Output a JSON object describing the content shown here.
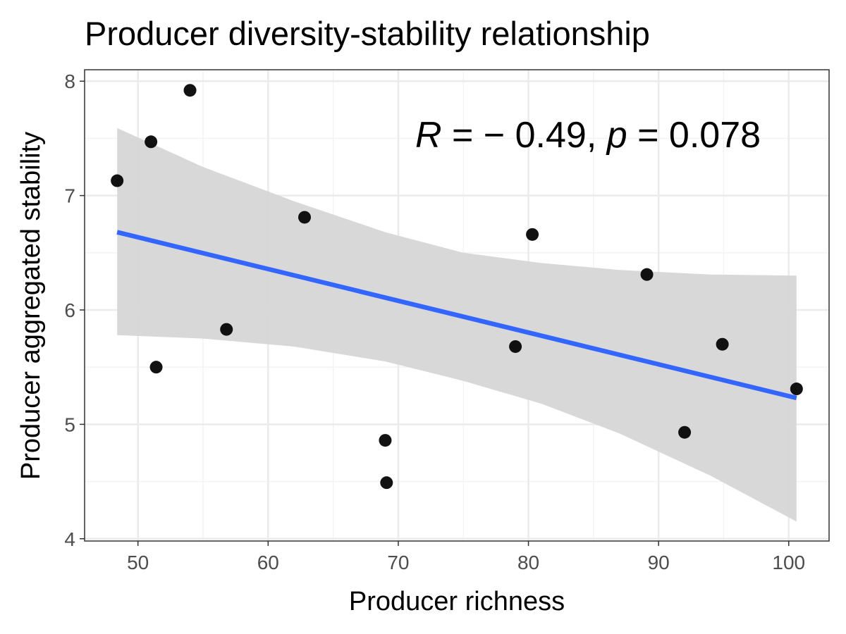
{
  "chart_data": {
    "type": "scatter",
    "title": "Producer diversity-stability relationship",
    "xlabel": "Producer richness",
    "ylabel": "Producer aggregated stability",
    "xlim": [
      45.9,
      103.1
    ],
    "ylim": [
      3.98,
      8.1
    ],
    "x_ticks": [
      50,
      60,
      70,
      80,
      90,
      100
    ],
    "y_ticks": [
      4,
      5,
      6,
      7,
      8
    ],
    "x_tick_labels": [
      "50",
      "60",
      "70",
      "80",
      "90",
      "100"
    ],
    "y_tick_labels": [
      "4",
      "5",
      "6",
      "7",
      "8"
    ],
    "grid": true,
    "points": [
      {
        "x": 48.4,
        "y": 7.13
      },
      {
        "x": 51.0,
        "y": 7.47
      },
      {
        "x": 51.4,
        "y": 5.5
      },
      {
        "x": 54.0,
        "y": 7.92
      },
      {
        "x": 56.8,
        "y": 5.83
      },
      {
        "x": 62.8,
        "y": 6.81
      },
      {
        "x": 69.0,
        "y": 4.86
      },
      {
        "x": 69.1,
        "y": 4.49
      },
      {
        "x": 79.0,
        "y": 5.68
      },
      {
        "x": 80.3,
        "y": 6.66
      },
      {
        "x": 89.1,
        "y": 6.31
      },
      {
        "x": 92.0,
        "y": 4.93
      },
      {
        "x": 94.9,
        "y": 5.7
      },
      {
        "x": 100.6,
        "y": 5.31
      }
    ],
    "regression": {
      "color": "#3366ff",
      "x": [
        48.4,
        100.6
      ],
      "y": [
        6.68,
        5.23
      ]
    },
    "confidence_band": {
      "color": "#d6d6d6",
      "x": [
        48.4,
        55,
        62,
        69,
        75,
        81,
        87,
        94,
        100.6
      ],
      "upper": [
        7.59,
        7.25,
        6.95,
        6.68,
        6.5,
        6.41,
        6.35,
        6.31,
        6.3
      ],
      "lower": [
        5.78,
        5.75,
        5.68,
        5.55,
        5.38,
        5.18,
        4.92,
        4.55,
        4.15
      ]
    },
    "annotation": {
      "r_symbol": "R",
      "r_text": " = − 0.49, ",
      "p_symbol": "p",
      "p_text": " = 0.078"
    }
  }
}
